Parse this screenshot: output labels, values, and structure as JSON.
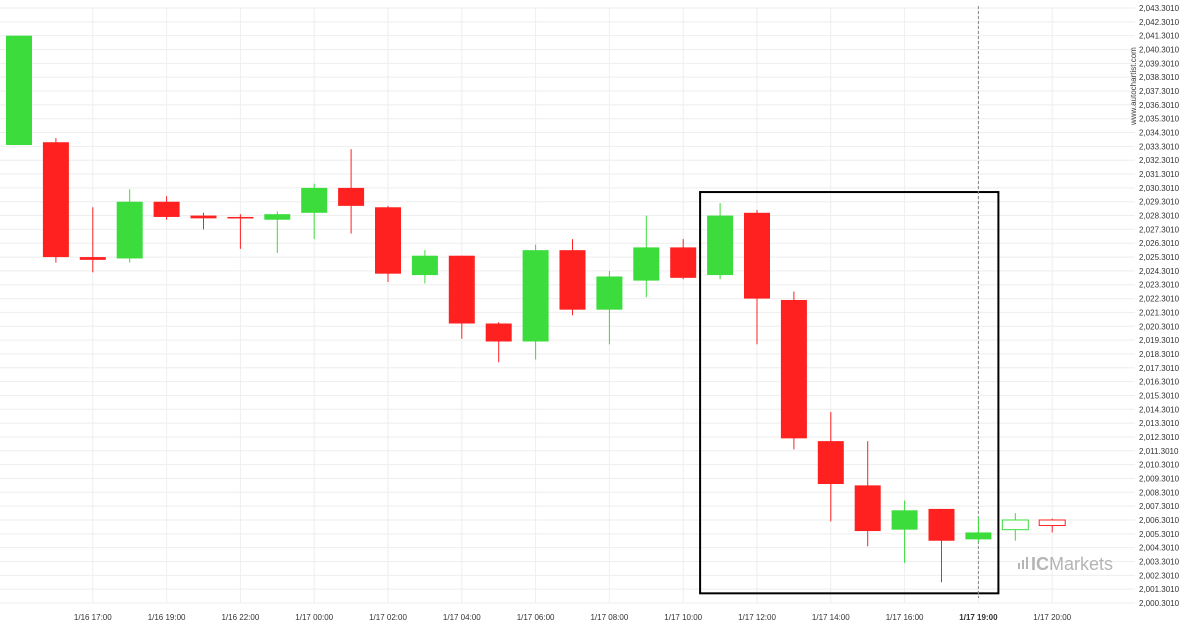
{
  "chart_data": {
    "type": "candlestick",
    "title": "",
    "xlabel": "",
    "ylabel": "",
    "ylim": [
      2000.301,
      2043.301
    ],
    "y_tick_step": 1,
    "grid": true,
    "candle_up_color": "#3bdc3b",
    "candle_down_color": "#ff2020",
    "candles": [
      {
        "o": 2033.4,
        "h": 2041.3,
        "l": 2033.4,
        "c": 2041.3
      },
      {
        "o": 2033.6,
        "h": 2033.9,
        "l": 2024.9,
        "c": 2025.3
      },
      {
        "o": 2025.3,
        "h": 2028.9,
        "l": 2024.2,
        "c": 2025.1
      },
      {
        "o": 2025.2,
        "h": 2030.2,
        "l": 2024.9,
        "c": 2029.3
      },
      {
        "o": 2029.3,
        "h": 2029.7,
        "l": 2028.0,
        "c": 2028.2
      },
      {
        "o": 2028.3,
        "h": 2028.5,
        "l": 2027.3,
        "c": 2028.1
      },
      {
        "o": 2028.2,
        "h": 2028.4,
        "l": 2025.9,
        "c": 2028.1
      },
      {
        "o": 2028.0,
        "h": 2028.6,
        "l": 2025.6,
        "c": 2028.4
      },
      {
        "o": 2028.5,
        "h": 2030.6,
        "l": 2026.6,
        "c": 2030.3
      },
      {
        "o": 2030.3,
        "h": 2033.1,
        "l": 2027.0,
        "c": 2029.0
      },
      {
        "o": 2028.9,
        "h": 2029.0,
        "l": 2023.5,
        "c": 2024.1
      },
      {
        "o": 2024.0,
        "h": 2025.8,
        "l": 2023.4,
        "c": 2025.4
      },
      {
        "o": 2025.4,
        "h": 2025.4,
        "l": 2019.4,
        "c": 2020.5
      },
      {
        "o": 2020.5,
        "h": 2020.6,
        "l": 2017.7,
        "c": 2019.2
      },
      {
        "o": 2019.2,
        "h": 2026.2,
        "l": 2017.9,
        "c": 2025.8
      },
      {
        "o": 2025.8,
        "h": 2026.6,
        "l": 2021.1,
        "c": 2021.5
      },
      {
        "o": 2021.5,
        "h": 2024.3,
        "l": 2019.0,
        "c": 2023.9
      },
      {
        "o": 2023.6,
        "h": 2028.3,
        "l": 2022.4,
        "c": 2026.0
      },
      {
        "o": 2026.0,
        "h": 2026.6,
        "l": 2023.7,
        "c": 2023.8
      },
      {
        "o": 2024.0,
        "h": 2029.2,
        "l": 2023.7,
        "c": 2028.3
      },
      {
        "o": 2028.5,
        "h": 2028.7,
        "l": 2019.0,
        "c": 2022.3
      },
      {
        "o": 2022.2,
        "h": 2022.8,
        "l": 2011.4,
        "c": 2012.2
      },
      {
        "o": 2012.0,
        "h": 2014.1,
        "l": 2006.2,
        "c": 2008.9
      },
      {
        "o": 2008.8,
        "h": 2012.0,
        "l": 2004.4,
        "c": 2005.5
      },
      {
        "o": 2005.6,
        "h": 2007.7,
        "l": 2003.2,
        "c": 2007.0
      },
      {
        "o": 2007.1,
        "h": 2007.1,
        "l": 2001.8,
        "c": 2004.8
      },
      {
        "o": 2004.9,
        "h": 2006.5,
        "l": 2004.7,
        "c": 2005.4
      },
      {
        "o": 2005.6,
        "h": 2006.8,
        "l": 2004.8,
        "c": 2006.3,
        "hollow": true
      },
      {
        "o": 2006.3,
        "h": 2006.4,
        "l": 2005.4,
        "c": 2005.9,
        "hollow": true
      }
    ],
    "x_tick_labels": [
      {
        "label": "1/16 17:00",
        "index": 2
      },
      {
        "label": "1/16 19:00",
        "index": 4
      },
      {
        "label": "1/16 22:00",
        "index": 6
      },
      {
        "label": "1/17 00:00",
        "index": 8
      },
      {
        "label": "1/17 02:00",
        "index": 10
      },
      {
        "label": "1/17 04:00",
        "index": 12
      },
      {
        "label": "1/17 06:00",
        "index": 14
      },
      {
        "label": "1/17 08:00",
        "index": 16
      },
      {
        "label": "1/17 10:00",
        "index": 18
      },
      {
        "label": "1/17 12:00",
        "index": 20
      },
      {
        "label": "1/17 14:00",
        "index": 22
      },
      {
        "label": "1/17 16:00",
        "index": 24
      },
      {
        "label": "1/17 19:00",
        "index": 26,
        "bold": true
      },
      {
        "label": "1/17 20:00",
        "index": 28
      }
    ],
    "highlight_box": {
      "from_index": 19,
      "to_index": 26,
      "y_low": 2001.0,
      "y_high": 2030.0
    },
    "current_time_index": 26
  },
  "watermark": "www.autochartist.com",
  "logo": {
    "part1": "IC",
    "part2": "Markets"
  }
}
